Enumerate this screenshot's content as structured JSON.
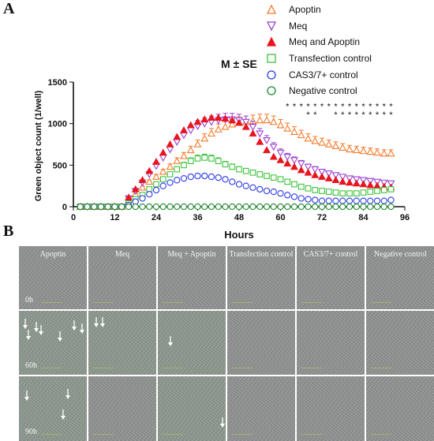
{
  "panel_a_label": "A",
  "panel_b_label": "B",
  "subtitle": "M ± SE",
  "colors": {
    "apoptin": "#f47a2a",
    "meq": "#9b3fd3",
    "meq_apoptin": "#e8141f",
    "transfection": "#3cc43c",
    "cas": "#2a3ae6",
    "negative": "#1f8a2f"
  },
  "chart_data": {
    "type": "scatter",
    "xlabel": "Hours",
    "ylabel": "Green object count (1/well)",
    "xlim": [
      0,
      96
    ],
    "ylim": [
      0,
      1500
    ],
    "xticks": [
      "0",
      "12",
      "24",
      "36",
      "48",
      "60",
      "72",
      "84",
      "96"
    ],
    "yticks": [
      "0",
      "500",
      "1000",
      "1500"
    ],
    "x": [
      2,
      4,
      6,
      8,
      10,
      12,
      14,
      16,
      18,
      20,
      22,
      24,
      26,
      28,
      30,
      32,
      34,
      36,
      38,
      40,
      42,
      44,
      46,
      48,
      50,
      52,
      54,
      56,
      58,
      60,
      62,
      64,
      66,
      68,
      70,
      72,
      74,
      76,
      78,
      80,
      82,
      84,
      86,
      88,
      90,
      92
    ],
    "series": [
      {
        "name": "Apoptin",
        "marker": "triangle-up-open",
        "color": "#f47a2a",
        "error_up": true,
        "values": [
          0,
          0,
          0,
          0,
          0,
          0,
          0,
          80,
          150,
          230,
          300,
          360,
          420,
          480,
          550,
          610,
          680,
          750,
          820,
          880,
          930,
          960,
          990,
          1010,
          1020,
          1030,
          1040,
          1040,
          1020,
          980,
          940,
          900,
          860,
          820,
          790,
          770,
          750,
          730,
          710,
          690,
          680,
          670,
          660,
          650,
          640,
          640
        ]
      },
      {
        "name": "Meq",
        "marker": "triangle-down-open",
        "color": "#9b3fd3",
        "error_up": true,
        "values": [
          0,
          0,
          0,
          0,
          0,
          0,
          0,
          100,
          190,
          290,
          390,
          490,
          590,
          690,
          780,
          860,
          920,
          970,
          1000,
          1020,
          1040,
          1050,
          1050,
          1040,
          1020,
          960,
          880,
          800,
          720,
          650,
          600,
          560,
          520,
          480,
          450,
          420,
          400,
          380,
          360,
          340,
          330,
          320,
          310,
          300,
          290,
          280
        ]
      },
      {
        "name": "Meq and Apoptin",
        "marker": "triangle-up-filled",
        "color": "#e8141f",
        "error_up": false,
        "values": [
          0,
          0,
          0,
          0,
          0,
          0,
          0,
          110,
          210,
          320,
          430,
          540,
          650,
          750,
          840,
          920,
          980,
          1020,
          1050,
          1070,
          1070,
          1060,
          1040,
          1010,
          960,
          880,
          780,
          680,
          600,
          560,
          520,
          480,
          440,
          410,
          380,
          360,
          340,
          320,
          300,
          290,
          280,
          270,
          260,
          250,
          240,
          230
        ]
      },
      {
        "name": "Transfection control",
        "marker": "square-open",
        "color": "#3cc43c",
        "error_up": true,
        "values": [
          0,
          0,
          0,
          0,
          0,
          0,
          0,
          40,
          90,
          140,
          210,
          270,
          330,
          390,
          450,
          500,
          550,
          580,
          590,
          580,
          550,
          510,
          480,
          450,
          430,
          410,
          390,
          370,
          350,
          330,
          300,
          270,
          240,
          220,
          200,
          190,
          180,
          170,
          160,
          160,
          160,
          170,
          180,
          190,
          200,
          210
        ]
      },
      {
        "name": "CAS3/7+ control",
        "marker": "circle-open",
        "color": "#2a3ae6",
        "error_up": true,
        "values": [
          0,
          0,
          0,
          0,
          0,
          0,
          0,
          20,
          60,
          100,
          150,
          200,
          250,
          290,
          320,
          340,
          360,
          370,
          370,
          360,
          350,
          330,
          300,
          270,
          250,
          230,
          210,
          190,
          180,
          160,
          140,
          120,
          100,
          90,
          80,
          70,
          70,
          70,
          70,
          70,
          70,
          70,
          70,
          70,
          70,
          80
        ]
      },
      {
        "name": "Negative control",
        "marker": "circle-open",
        "color": "#1f8a2f",
        "error_up": false,
        "values": [
          0,
          0,
          0,
          0,
          0,
          0,
          0,
          0,
          0,
          0,
          0,
          0,
          0,
          0,
          0,
          0,
          0,
          0,
          0,
          0,
          0,
          0,
          0,
          0,
          0,
          0,
          0,
          0,
          0,
          0,
          0,
          0,
          0,
          0,
          0,
          0,
          0,
          0,
          0,
          0,
          0,
          0,
          0,
          0,
          0,
          0
        ]
      }
    ],
    "significance_rows": [
      {
        "symbol": "*",
        "x": [
          62,
          64,
          66,
          68,
          70,
          72,
          74,
          76,
          78,
          80,
          82,
          84,
          86,
          88,
          90,
          92
        ],
        "y": 1210
      },
      {
        "symbol": "*",
        "x": [
          68,
          70,
          76,
          78,
          80,
          82,
          84,
          86,
          88,
          90,
          92
        ],
        "y": 1110
      }
    ]
  },
  "panel_b": {
    "columns": [
      "Apoptin",
      "Meq",
      "Meq + Apoptin",
      "Transfection control",
      "CAS3/7+ control",
      "Negative control"
    ],
    "rows": [
      "0h",
      "60h",
      "90h"
    ]
  }
}
